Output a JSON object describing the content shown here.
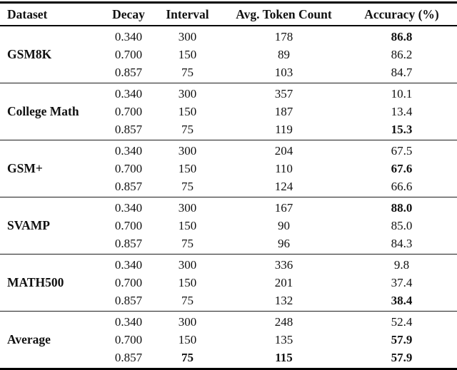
{
  "table": {
    "columns": [
      "Dataset",
      "Decay",
      "Interval",
      "Avg. Token Count",
      "Accuracy (%)"
    ],
    "text_color": "#111111",
    "rule_color": "#000000",
    "groups": [
      {
        "dataset": "GSM8K",
        "rows": [
          {
            "cells": [
              "0.340",
              "300",
              "178",
              "86.8"
            ],
            "bold": [
              false,
              false,
              false,
              true
            ]
          },
          {
            "cells": [
              "0.700",
              "150",
              "89",
              "86.2"
            ],
            "bold": [
              false,
              false,
              false,
              false
            ]
          },
          {
            "cells": [
              "0.857",
              "75",
              "103",
              "84.7"
            ],
            "bold": [
              false,
              false,
              false,
              false
            ]
          }
        ]
      },
      {
        "dataset": "College Math",
        "rows": [
          {
            "cells": [
              "0.340",
              "300",
              "357",
              "10.1"
            ],
            "bold": [
              false,
              false,
              false,
              false
            ]
          },
          {
            "cells": [
              "0.700",
              "150",
              "187",
              "13.4"
            ],
            "bold": [
              false,
              false,
              false,
              false
            ]
          },
          {
            "cells": [
              "0.857",
              "75",
              "119",
              "15.3"
            ],
            "bold": [
              false,
              false,
              false,
              true
            ]
          }
        ]
      },
      {
        "dataset": "GSM+",
        "rows": [
          {
            "cells": [
              "0.340",
              "300",
              "204",
              "67.5"
            ],
            "bold": [
              false,
              false,
              false,
              false
            ]
          },
          {
            "cells": [
              "0.700",
              "150",
              "110",
              "67.6"
            ],
            "bold": [
              false,
              false,
              false,
              true
            ]
          },
          {
            "cells": [
              "0.857",
              "75",
              "124",
              "66.6"
            ],
            "bold": [
              false,
              false,
              false,
              false
            ]
          }
        ]
      },
      {
        "dataset": "SVAMP",
        "rows": [
          {
            "cells": [
              "0.340",
              "300",
              "167",
              "88.0"
            ],
            "bold": [
              false,
              false,
              false,
              true
            ]
          },
          {
            "cells": [
              "0.700",
              "150",
              "90",
              "85.0"
            ],
            "bold": [
              false,
              false,
              false,
              false
            ]
          },
          {
            "cells": [
              "0.857",
              "75",
              "96",
              "84.3"
            ],
            "bold": [
              false,
              false,
              false,
              false
            ]
          }
        ]
      },
      {
        "dataset": "MATH500",
        "rows": [
          {
            "cells": [
              "0.340",
              "300",
              "336",
              "9.8"
            ],
            "bold": [
              false,
              false,
              false,
              false
            ]
          },
          {
            "cells": [
              "0.700",
              "150",
              "201",
              "37.4"
            ],
            "bold": [
              false,
              false,
              false,
              false
            ]
          },
          {
            "cells": [
              "0.857",
              "75",
              "132",
              "38.4"
            ],
            "bold": [
              false,
              false,
              false,
              true
            ]
          }
        ]
      },
      {
        "dataset": "Average",
        "rows": [
          {
            "cells": [
              "0.340",
              "300",
              "248",
              "52.4"
            ],
            "bold": [
              false,
              false,
              false,
              false
            ]
          },
          {
            "cells": [
              "0.700",
              "150",
              "135",
              "57.9"
            ],
            "bold": [
              false,
              false,
              false,
              true
            ]
          },
          {
            "cells": [
              "0.857",
              "75",
              "115",
              "57.9"
            ],
            "bold": [
              false,
              true,
              true,
              true
            ]
          }
        ]
      }
    ]
  }
}
